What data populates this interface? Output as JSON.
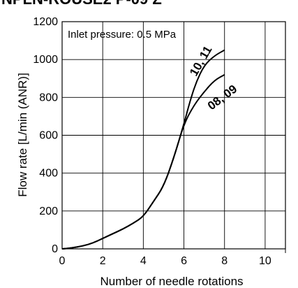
{
  "chart_data": {
    "type": "line",
    "title_partial": "NPLN-ROUSE2 P-09 Z",
    "xlabel": "Number of needle rotations",
    "ylabel": "Flow rate [L/min (ANR)]",
    "annotation": "Inlet pressure: 0.5 MPa",
    "xlim": [
      0,
      11
    ],
    "ylim": [
      0,
      1200
    ],
    "xticks": [
      "0",
      "2",
      "4",
      "6",
      "8",
      "10"
    ],
    "yticks": [
      "0",
      "200",
      "400",
      "600",
      "800",
      "1000",
      "1200"
    ],
    "grid": true,
    "series": [
      {
        "name": "10, 11",
        "x": [
          0,
          0.5,
          1,
          1.5,
          2,
          2.5,
          3,
          3.5,
          4,
          4.5,
          5,
          5.5,
          6,
          6.3,
          6.6,
          7,
          7.5,
          8
        ],
        "y": [
          0,
          5,
          15,
          30,
          55,
          80,
          105,
          135,
          170,
          250,
          330,
          480,
          660,
          780,
          880,
          970,
          1020,
          1050
        ]
      },
      {
        "name": "08, 09",
        "x": [
          0,
          0.5,
          1,
          1.5,
          2,
          2.5,
          3,
          3.5,
          4,
          4.5,
          5,
          5.5,
          6,
          6.5,
          7,
          7.5,
          8
        ],
        "y": [
          0,
          5,
          15,
          30,
          55,
          80,
          105,
          135,
          170,
          250,
          330,
          480,
          660,
          760,
          830,
          890,
          920
        ]
      }
    ]
  }
}
